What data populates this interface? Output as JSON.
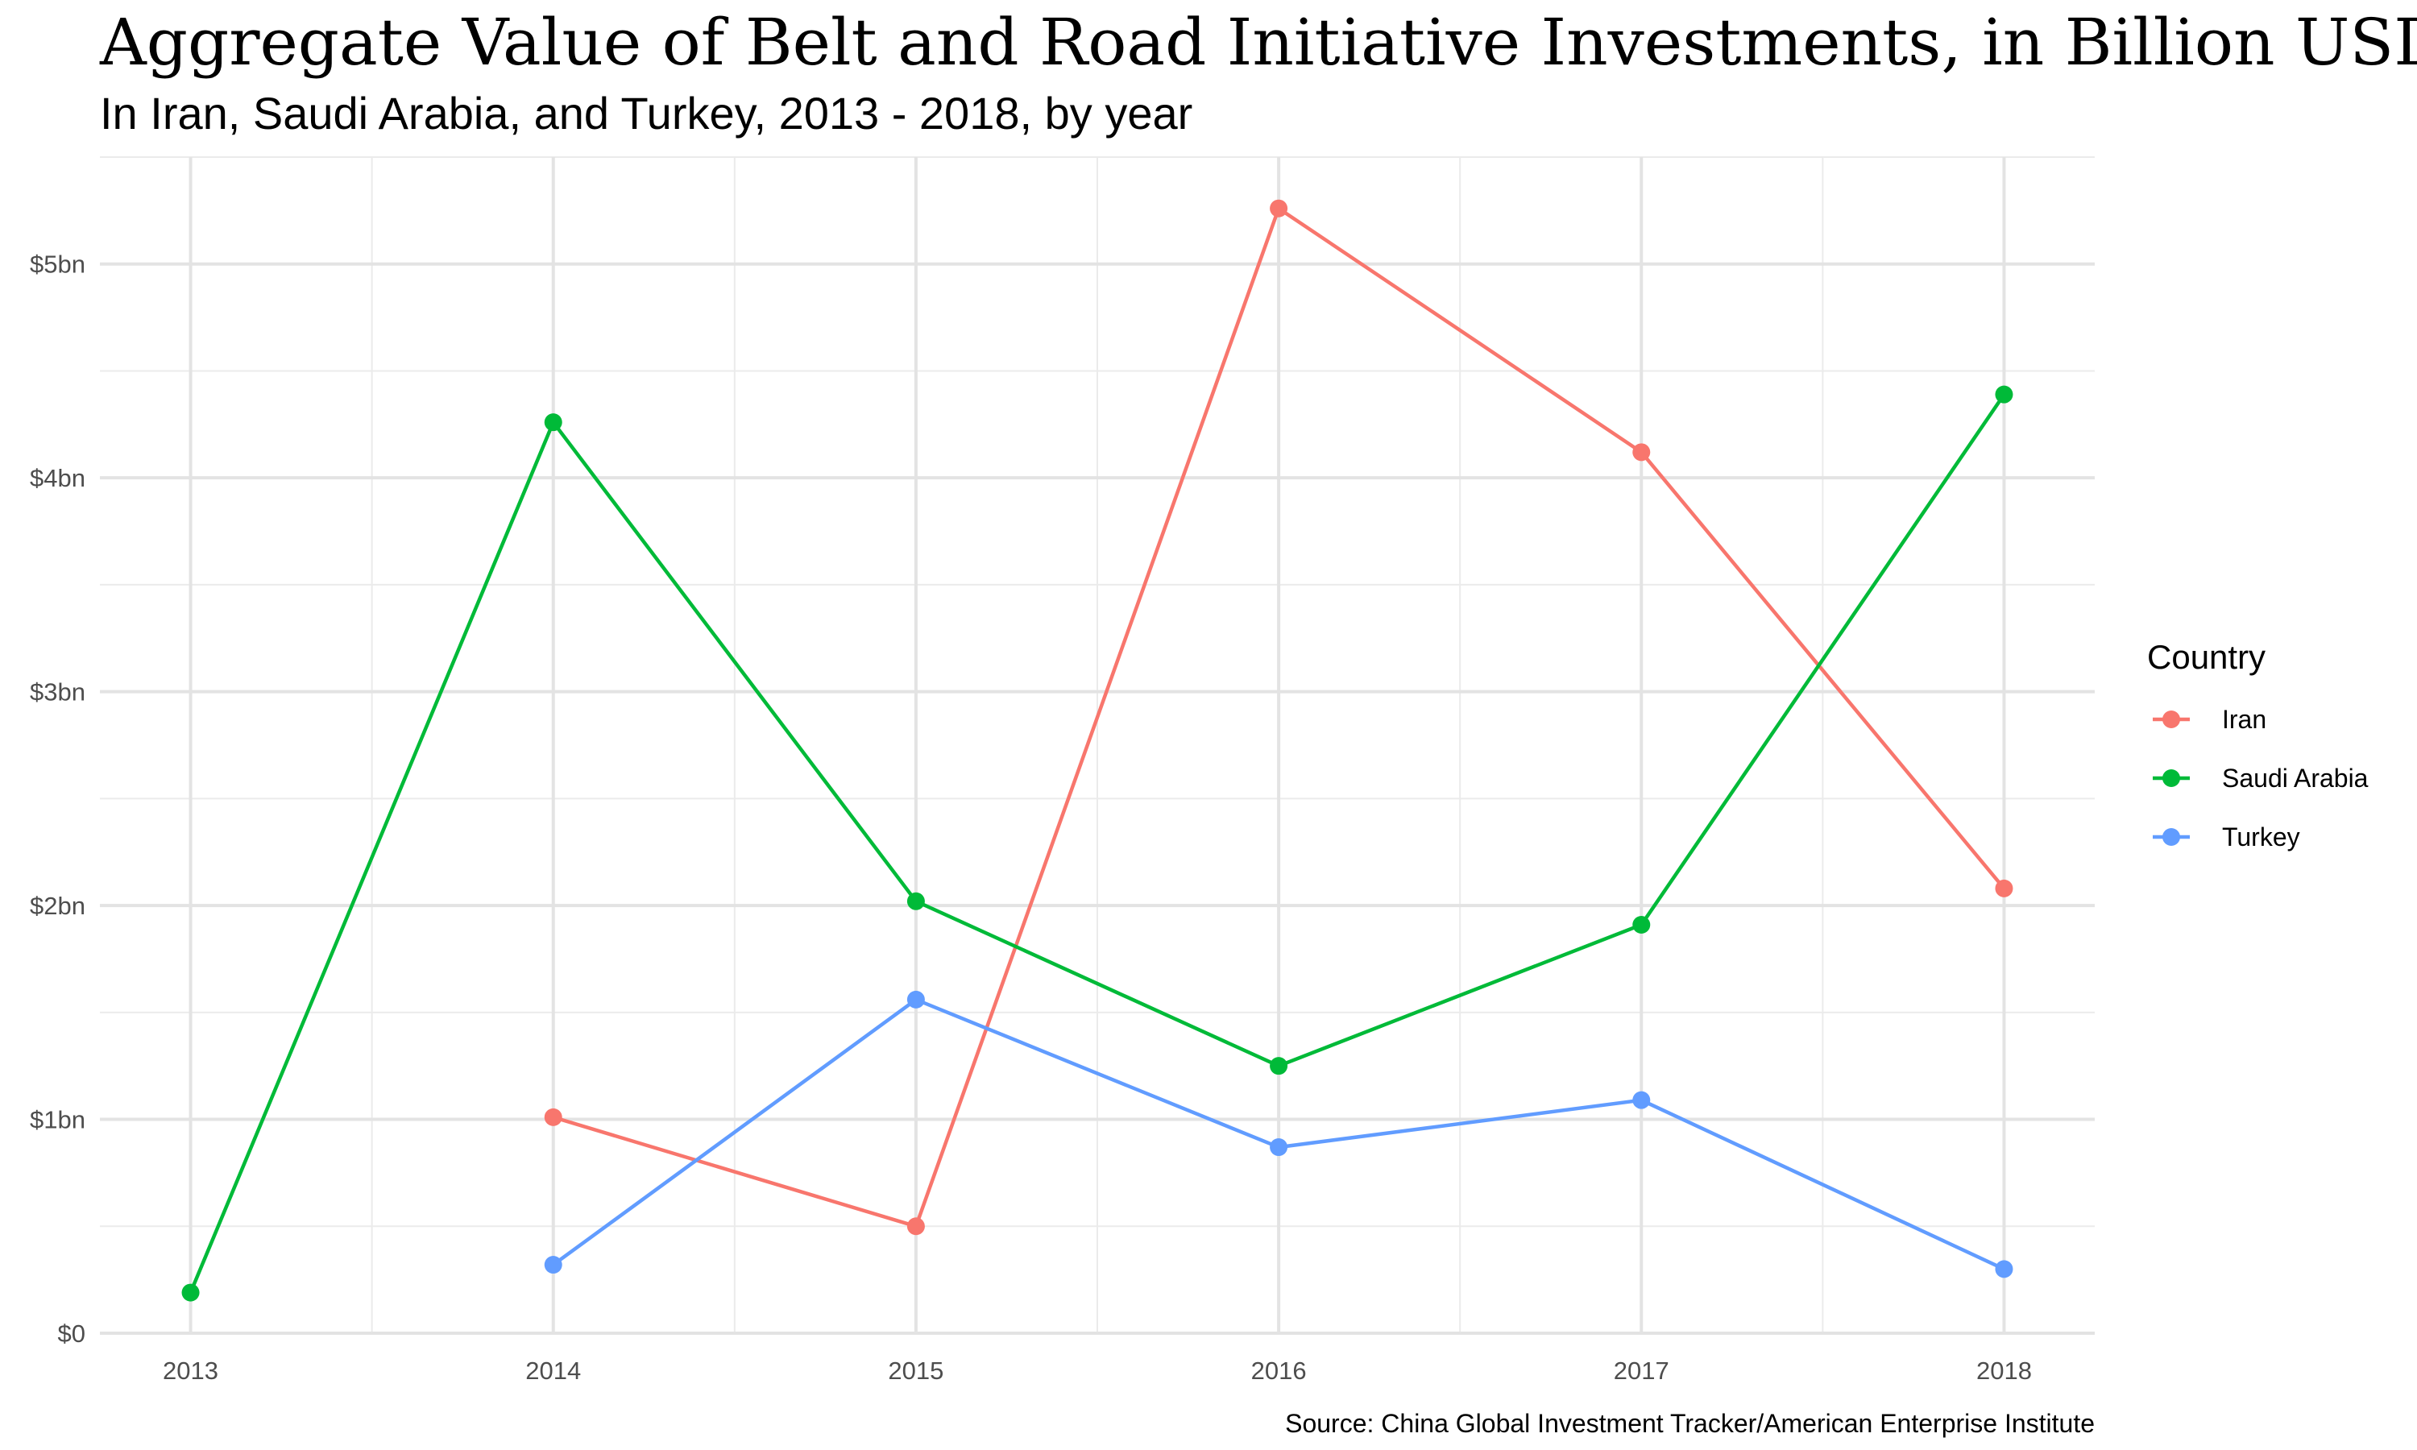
{
  "chart_data": {
    "type": "line",
    "title": "Aggregate Value of Belt and Road Initiative Investments, in Billion USD",
    "subtitle": "In Iran, Saudi Arabia, and Turkey, 2013 - 2018, by year",
    "caption": "Source: China Global Investment Tracker/American Enterprise Institute",
    "xlabel": "",
    "ylabel": "",
    "x_ticks": [
      "2013",
      "2014",
      "2015",
      "2016",
      "2017",
      "2018"
    ],
    "xlim": [
      2012.75,
      2018.25
    ],
    "y_ticks": [
      {
        "value": 0,
        "label": "$0"
      },
      {
        "value": 1,
        "label": "$1bn"
      },
      {
        "value": 2,
        "label": "$2bn"
      },
      {
        "value": 3,
        "label": "$3bn"
      },
      {
        "value": 4,
        "label": "$4bn"
      },
      {
        "value": 5,
        "label": "$5bn"
      }
    ],
    "ylim": [
      0,
      5.5
    ],
    "grid": true,
    "legend": {
      "title": "Country",
      "position": "right"
    },
    "series": [
      {
        "name": "Iran",
        "color": "#F8766D",
        "points": [
          {
            "x": 2014,
            "y": 1.01
          },
          {
            "x": 2015,
            "y": 0.5
          },
          {
            "x": 2016,
            "y": 5.26
          },
          {
            "x": 2017,
            "y": 4.12
          },
          {
            "x": 2018,
            "y": 2.08
          }
        ]
      },
      {
        "name": "Saudi Arabia",
        "color": "#00BA38",
        "points": [
          {
            "x": 2013,
            "y": 0.19
          },
          {
            "x": 2014,
            "y": 4.26
          },
          {
            "x": 2015,
            "y": 2.02
          },
          {
            "x": 2016,
            "y": 1.25
          },
          {
            "x": 2017,
            "y": 1.91
          },
          {
            "x": 2018,
            "y": 4.39
          }
        ]
      },
      {
        "name": "Turkey",
        "color": "#619CFF",
        "points": [
          {
            "x": 2014,
            "y": 0.32
          },
          {
            "x": 2015,
            "y": 1.56
          },
          {
            "x": 2016,
            "y": 0.87
          },
          {
            "x": 2017,
            "y": 1.09
          },
          {
            "x": 2018,
            "y": 0.3
          }
        ]
      }
    ]
  }
}
